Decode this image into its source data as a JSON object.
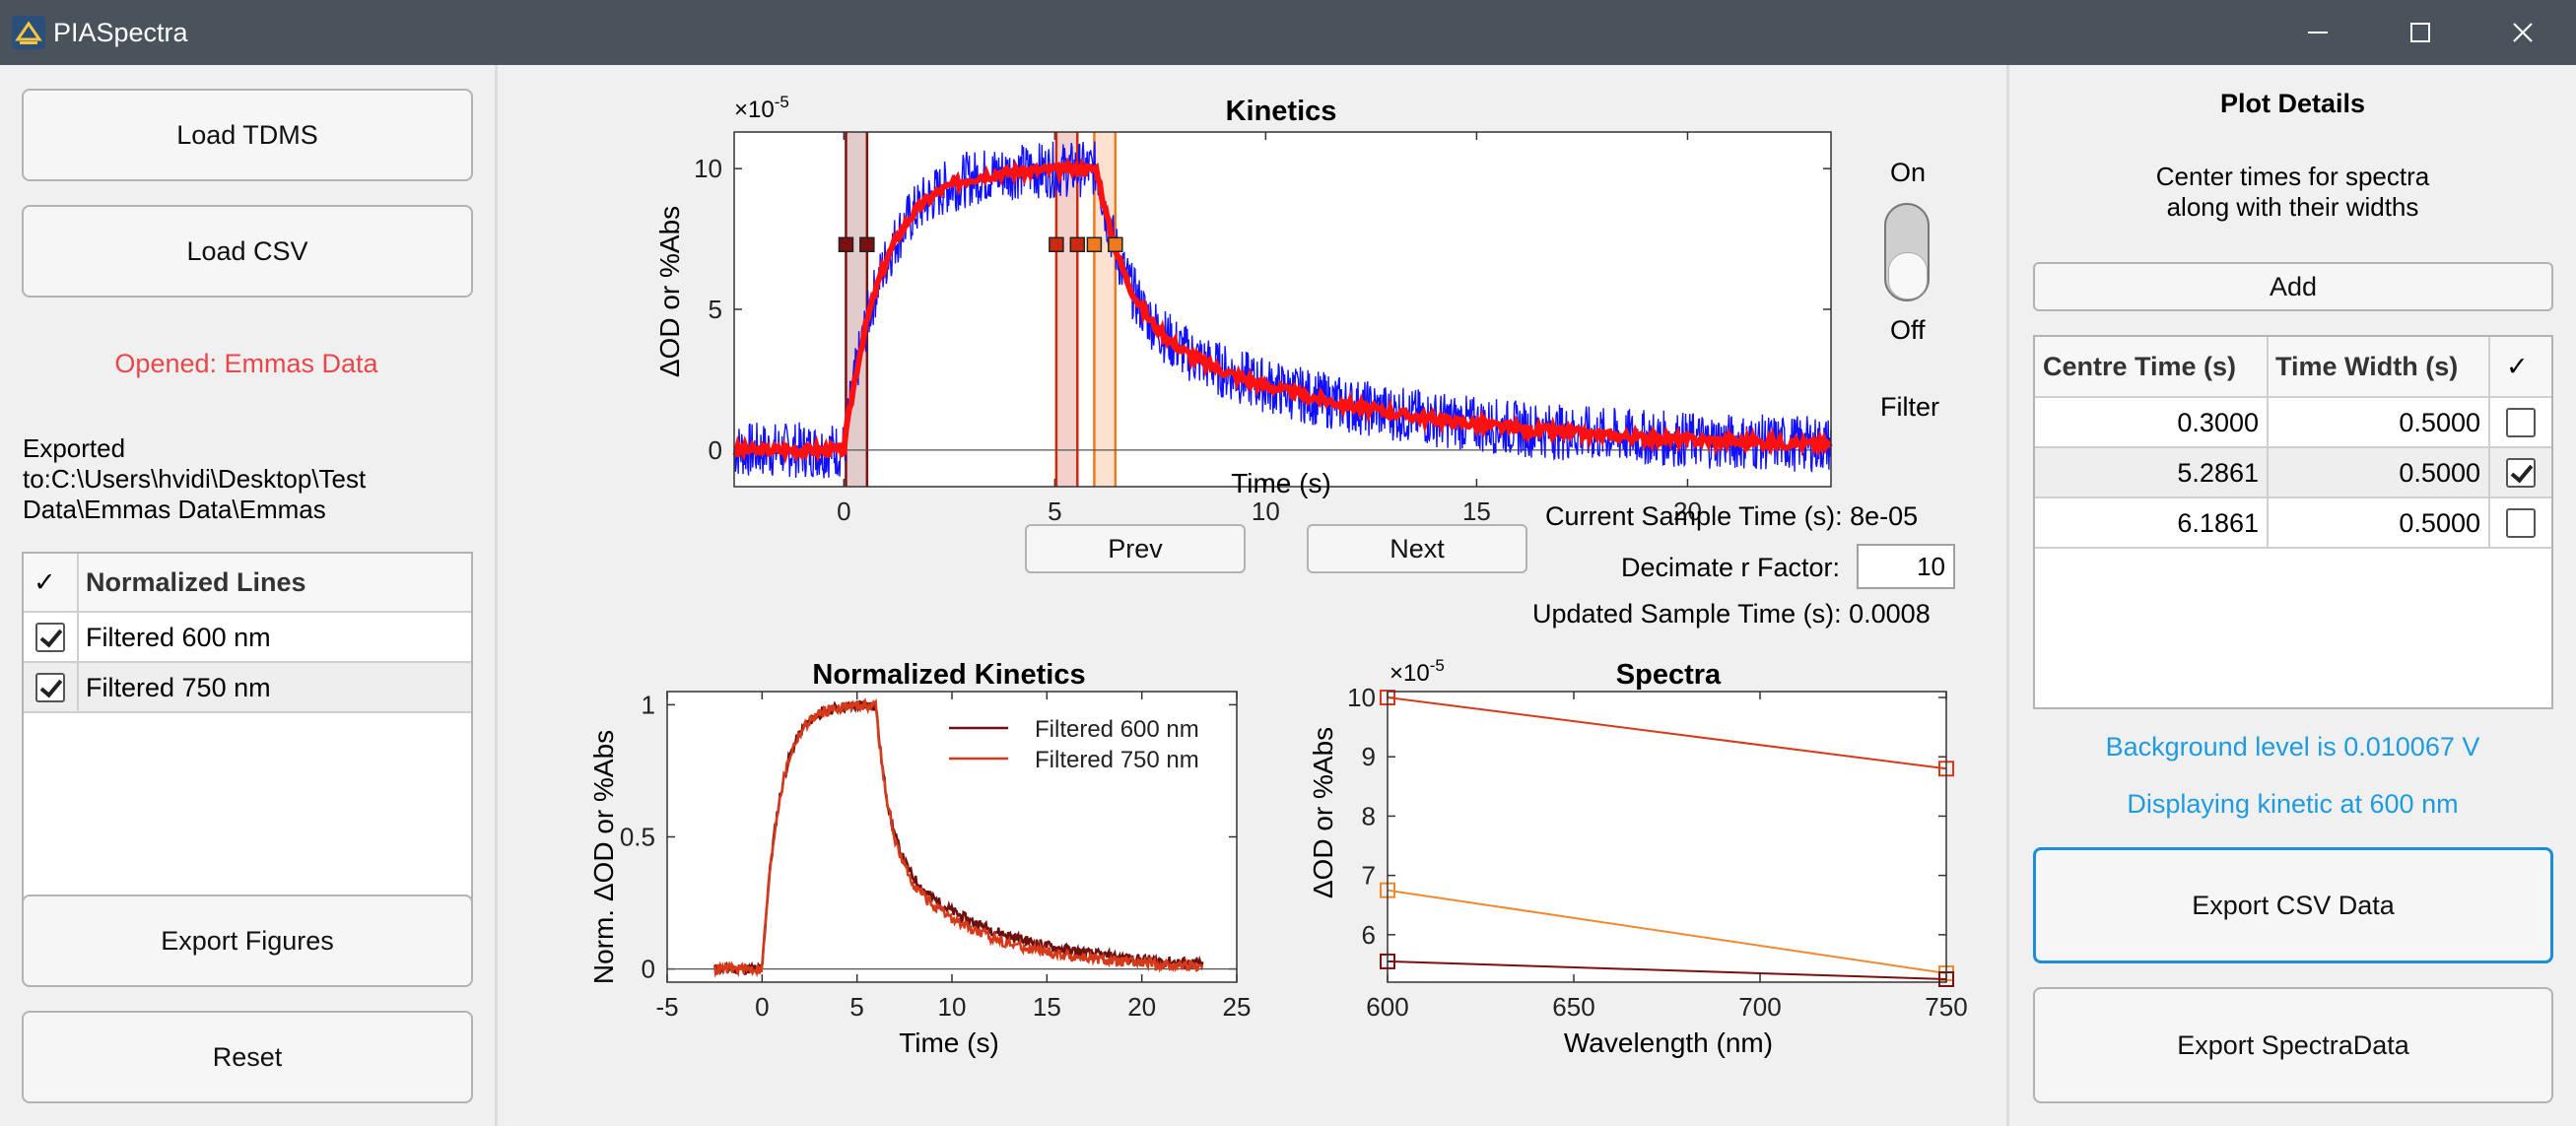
{
  "window": {
    "title": "PIASpectra",
    "minimize_icon": "minimize-icon",
    "maximize_icon": "maximize-icon",
    "close_icon": "close-icon"
  },
  "left_panel": {
    "load_tdms": "Load TDMS",
    "load_csv": "Load CSV",
    "opened_status": "Opened: Emmas Data",
    "opened_color": "#e8474a",
    "export_line1": "Exported",
    "export_line2": "to:C:\\Users\\hvidi\\Desktop\\Test",
    "export_line3": "Data\\Emmas Data\\Emmas",
    "lines_table": {
      "check_header": "✓",
      "name_header": "Normalized Lines",
      "rows": [
        {
          "checked": true,
          "name": "Filtered 600 nm"
        },
        {
          "checked": true,
          "name": "Filtered 750 nm"
        }
      ]
    },
    "export_figures": "Export Figures",
    "reset": "Reset"
  },
  "center": {
    "prev": "Prev",
    "next": "Next",
    "current_sample_time": "Current Sample Time (s): 8e-05",
    "decimate_label": "Decimate r Factor:",
    "decimate_value": "10",
    "updated_sample_time": "Updated Sample Time (s): 0.0008",
    "filter_switch": {
      "on": "On",
      "off": "Off",
      "label": "Filter"
    }
  },
  "right_panel": {
    "title": "Plot Details",
    "desc_line1": "Center times for spectra",
    "desc_line2": "along with their widths",
    "add": "Add",
    "table": {
      "headers": [
        "Centre Time (s)",
        "Time Width (s)",
        "✓"
      ],
      "rows": [
        {
          "centre": "0.3000",
          "width": "0.5000",
          "checked": false
        },
        {
          "centre": "5.2861",
          "width": "0.5000",
          "checked": true
        },
        {
          "centre": "6.1861",
          "width": "0.5000",
          "checked": false
        }
      ]
    },
    "background_level": "Background level is 0.010067 V",
    "displaying": "Displaying kinetic at 600 nm",
    "info_color": "#1e9be0",
    "export_csv": "Export CSV Data",
    "export_spectra": "Export SpectraData"
  },
  "chart_data": [
    {
      "type": "line",
      "title": "Kinetics",
      "xlabel": "Time (s)",
      "ylabel": "ΔOD or %Abs",
      "exponent": "×10",
      "exponent_power": "-5",
      "xlim": [
        -2.6,
        23.4
      ],
      "ylim": [
        -1.3,
        11.3
      ],
      "xticks": [
        "0",
        "5",
        "10",
        "15",
        "20"
      ],
      "yticks": [
        "0",
        "5",
        "10"
      ],
      "series": [
        {
          "color": "#1010ff",
          "role": "raw"
        },
        {
          "color": "#ff1010",
          "role": "filtered"
        }
      ],
      "kinetic_model": {
        "baseline": 0.0,
        "plateau": 10.0,
        "rise_start": 0.0,
        "rise_tau": 0.9,
        "decay_start": 6.0,
        "decay_fast": 5.0,
        "decay_fast_tau": 0.7,
        "decay_slow": 4.5,
        "decay_slow_tau": 5.5
      },
      "windows": [
        {
          "center": 0.3,
          "width": 0.5,
          "color": "#7a1010"
        },
        {
          "center": 5.2861,
          "width": 0.5,
          "color": "#cc2a10"
        },
        {
          "center": 6.1861,
          "width": 0.5,
          "color": "#f07a20"
        }
      ],
      "markers_y": 7.3
    },
    {
      "type": "line",
      "title": "Normalized Kinetics",
      "xlabel": "Time (s)",
      "ylabel": "Norm. ΔOD or %Abs",
      "xlim": [
        -5,
        25
      ],
      "ylim": [
        -0.05,
        1.05
      ],
      "xticks": [
        "-5",
        "0",
        "5",
        "10",
        "15",
        "20",
        "25"
      ],
      "yticks": [
        "0",
        "0.5",
        "1"
      ],
      "series": [
        {
          "name": "Filtered 600 nm",
          "color": "#6b0f0f"
        },
        {
          "name": "Filtered 750 nm",
          "color": "#d63a1a"
        }
      ],
      "legend": "top-right"
    },
    {
      "type": "line",
      "title": "Spectra",
      "xlabel": "Wavelength (nm)",
      "ylabel": "ΔOD or %Abs",
      "exponent": "×10",
      "exponent_power": "-5",
      "xlim": [
        600,
        750
      ],
      "ylim": [
        5.2,
        10.1
      ],
      "xticks": [
        "600",
        "650",
        "700",
        "750"
      ],
      "yticks": [
        "6",
        "7",
        "8",
        "9",
        "10"
      ],
      "series": [
        {
          "color": "#d63a1a",
          "x": [
            600,
            750
          ],
          "y": [
            10.0,
            8.8
          ]
        },
        {
          "color": "#f08a30",
          "x": [
            600,
            750
          ],
          "y": [
            6.75,
            5.35
          ]
        },
        {
          "color": "#7a1010",
          "x": [
            600,
            750
          ],
          "y": [
            5.55,
            5.25
          ]
        }
      ]
    }
  ]
}
